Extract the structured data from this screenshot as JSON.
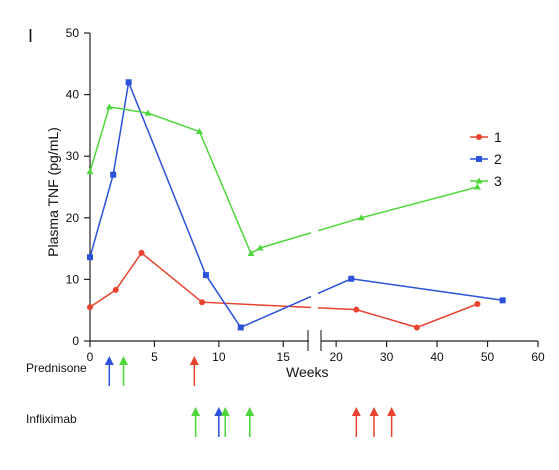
{
  "chart_data": {
    "type": "line",
    "panel_label": "I",
    "ylabel": "Plasma TNF (pg/mL)",
    "xlabel": "Weeks",
    "ylim": [
      0,
      50
    ],
    "yticks": [
      "0",
      "10",
      "20",
      "30",
      "40",
      "50"
    ],
    "x_axis": {
      "broken": true,
      "segments": [
        {
          "range": [
            0,
            17
          ],
          "ticks": [
            0,
            5,
            10,
            15
          ],
          "tick_labels": [
            "0",
            "5",
            "10",
            "15"
          ]
        },
        {
          "range": [
            17,
            60
          ],
          "ticks": [
            20,
            30,
            40,
            50,
            60
          ],
          "tick_labels": [
            "20",
            "30",
            "40",
            "50",
            "60"
          ]
        }
      ]
    },
    "grid": false,
    "legend_position": "right",
    "series": [
      {
        "name": "1",
        "color": "#e8432e",
        "marker": "circle",
        "x": [
          0,
          2,
          4,
          8.7,
          24,
          36,
          48
        ],
        "y": [
          5.5,
          8.3,
          14.3,
          6.3,
          5.1,
          2.2,
          6.0
        ]
      },
      {
        "name": "2",
        "color": "#2b52d9",
        "marker": "square",
        "x": [
          0,
          1.8,
          3,
          9,
          11.7,
          23,
          53
        ],
        "y": [
          13.6,
          27.0,
          42.0,
          10.7,
          2.2,
          10.1,
          6.6
        ]
      },
      {
        "name": "3",
        "color": "#4fd63c",
        "marker": "triangle",
        "x": [
          0,
          1.5,
          4.5,
          8.5,
          12.5,
          13.2,
          25,
          48
        ],
        "y": [
          27.5,
          38.0,
          37.0,
          34.0,
          14.2,
          15.1,
          20.0,
          25.0
        ]
      }
    ],
    "arrow_rows": [
      {
        "label": "Prednisone",
        "arrows": [
          {
            "week": 1.5,
            "series": "2"
          },
          {
            "week": 2.6,
            "series": "3"
          },
          {
            "week": 8.1,
            "series": "1"
          }
        ]
      },
      {
        "label": "Infliximab",
        "arrows": [
          {
            "week": 8.2,
            "series": "3"
          },
          {
            "week": 10.0,
            "series": "2"
          },
          {
            "week": 10.5,
            "series": "3"
          },
          {
            "week": 12.4,
            "series": "3"
          },
          {
            "week": 24,
            "series": "1"
          },
          {
            "week": 27.5,
            "series": "1"
          },
          {
            "week": 31,
            "series": "1"
          }
        ]
      }
    ]
  }
}
